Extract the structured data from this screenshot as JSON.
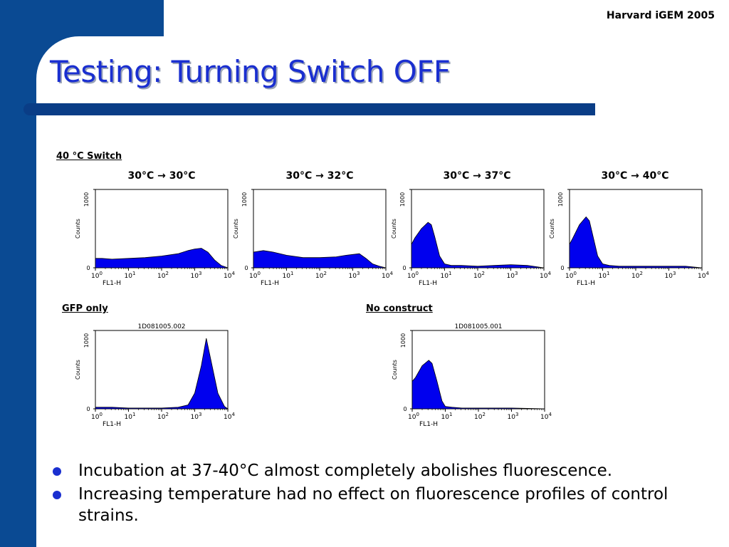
{
  "header": {
    "brand": "Harvard iGEM 2005",
    "title": "Testing: Turning Switch OFF"
  },
  "colors": {
    "accent": "#0a4a93",
    "title": "#1a2fd0",
    "histogram_fill": "#0000ee"
  },
  "sections": {
    "switch_label": "40 °C Switch",
    "gfp_label": "GFP only",
    "no_construct_label": "No construct"
  },
  "chart_data": [
    {
      "type": "area",
      "title": "30°C → 30°C",
      "xlabel": "FL1-H",
      "ylabel": "Counts",
      "xscale": "log",
      "x_ticks": [
        "10^0",
        "10^1",
        "10^2",
        "10^3",
        "10^4"
      ],
      "y_ticks": [
        "0",
        "1000"
      ],
      "x": [
        0,
        0.2,
        0.5,
        1,
        1.5,
        2,
        2.5,
        2.8,
        3.0,
        3.2,
        3.4,
        3.6,
        3.8,
        4
      ],
      "values": [
        0.12,
        0.12,
        0.11,
        0.12,
        0.13,
        0.15,
        0.18,
        0.22,
        0.24,
        0.25,
        0.2,
        0.1,
        0.03,
        0
      ]
    },
    {
      "type": "area",
      "title": "30°C → 32°C",
      "xlabel": "FL1-H",
      "ylabel": "Counts",
      "xscale": "log",
      "x_ticks": [
        "10^0",
        "10^1",
        "10^2",
        "10^3",
        "10^4"
      ],
      "y_ticks": [
        "0",
        "1000"
      ],
      "x": [
        0,
        0.3,
        0.6,
        1,
        1.5,
        2,
        2.5,
        2.8,
        3.0,
        3.2,
        3.4,
        3.6,
        3.8,
        4
      ],
      "values": [
        0.2,
        0.22,
        0.2,
        0.16,
        0.13,
        0.13,
        0.14,
        0.16,
        0.17,
        0.18,
        0.12,
        0.05,
        0.02,
        0
      ]
    },
    {
      "type": "area",
      "title": "30°C → 37°C",
      "xlabel": "FL1-H",
      "ylabel": "Counts",
      "xscale": "log",
      "x_ticks": [
        "10^0",
        "10^1",
        "10^2",
        "10^3",
        "10^4"
      ],
      "y_ticks": [
        "0",
        "1000"
      ],
      "x": [
        0,
        0.1,
        0.3,
        0.5,
        0.6,
        0.7,
        0.85,
        1.0,
        1.2,
        1.5,
        2,
        2.5,
        3,
        3.5,
        4
      ],
      "values": [
        0.3,
        0.38,
        0.5,
        0.58,
        0.55,
        0.4,
        0.15,
        0.05,
        0.03,
        0.03,
        0.02,
        0.03,
        0.04,
        0.03,
        0
      ]
    },
    {
      "type": "area",
      "title": "30°C → 40°C",
      "xlabel": "FL1-H",
      "ylabel": "Counts",
      "xscale": "log",
      "x_ticks": [
        "10^0",
        "10^1",
        "10^2",
        "10^3",
        "10^4"
      ],
      "y_ticks": [
        "0",
        "1000"
      ],
      "x": [
        0,
        0.1,
        0.3,
        0.5,
        0.6,
        0.7,
        0.85,
        1.0,
        1.2,
        1.5,
        2,
        2.5,
        3,
        3.5,
        4
      ],
      "values": [
        0.3,
        0.38,
        0.55,
        0.65,
        0.6,
        0.42,
        0.15,
        0.05,
        0.03,
        0.02,
        0.02,
        0.02,
        0.02,
        0.02,
        0
      ]
    },
    {
      "type": "area",
      "title": "1D081005.002",
      "xlabel": "FL1-H",
      "ylabel": "Counts",
      "xscale": "log",
      "x_ticks": [
        "10^0",
        "10^1",
        "10^2",
        "10^3",
        "10^4"
      ],
      "y_ticks": [
        "0",
        "1000"
      ],
      "x": [
        0,
        0.5,
        1,
        1.5,
        2,
        2.5,
        2.8,
        3.0,
        3.2,
        3.35,
        3.5,
        3.7,
        3.9,
        4
      ],
      "values": [
        0.02,
        0.02,
        0.01,
        0.01,
        0.01,
        0.02,
        0.05,
        0.2,
        0.55,
        0.9,
        0.6,
        0.2,
        0.03,
        0
      ]
    },
    {
      "type": "area",
      "title": "1D081005.001",
      "xlabel": "FL1-H",
      "ylabel": "Counts",
      "xscale": "log",
      "x_ticks": [
        "10^0",
        "10^1",
        "10^2",
        "10^3",
        "10^4"
      ],
      "y_ticks": [
        "0",
        "1000"
      ],
      "x": [
        0,
        0.1,
        0.3,
        0.5,
        0.6,
        0.75,
        0.9,
        1.0,
        1.2,
        1.5,
        2,
        3,
        4
      ],
      "values": [
        0.35,
        0.4,
        0.55,
        0.62,
        0.58,
        0.35,
        0.1,
        0.03,
        0.02,
        0.01,
        0.01,
        0.01,
        0
      ]
    }
  ],
  "bullets": [
    "Incubation at 37-40°C almost completely abolishes fluorescence.",
    "Increasing temperature had no effect on fluorescence profiles of control strains."
  ]
}
